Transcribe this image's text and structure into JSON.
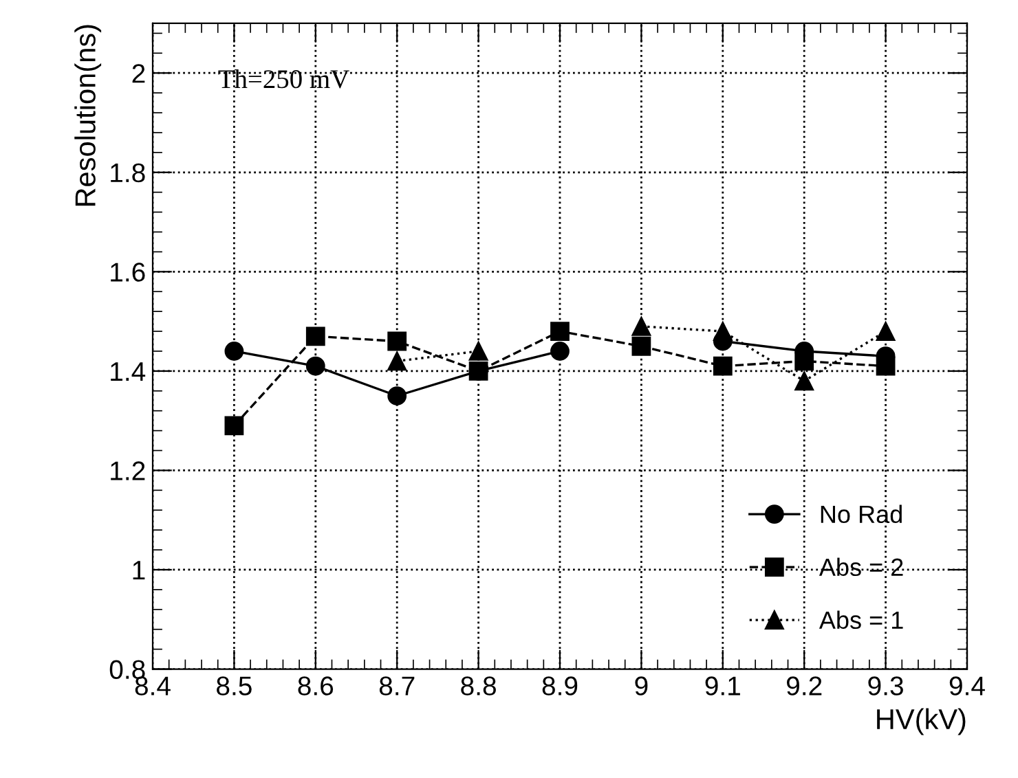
{
  "chart_data": {
    "type": "line",
    "xlabel": "HV(kV)",
    "ylabel": "Resolution(ns)",
    "x": [
      8.5,
      8.6,
      8.7,
      8.8,
      8.9,
      9.0,
      9.1,
      9.2,
      9.3
    ],
    "series": [
      {
        "name": "No Rad",
        "color": "#000000",
        "marker": "circle",
        "line_style": "solid",
        "values": [
          1.44,
          1.41,
          1.35,
          1.4,
          1.44,
          null,
          1.46,
          1.44,
          1.43
        ]
      },
      {
        "name": "Abs = 2",
        "color": "#000000",
        "marker": "square",
        "line_style": "dashed",
        "values": [
          1.29,
          1.47,
          1.46,
          1.4,
          1.48,
          1.45,
          1.41,
          1.42,
          1.41
        ]
      },
      {
        "name": "Abs = 1",
        "color": "#000000",
        "marker": "triangle",
        "line_style": "dotted",
        "values": [
          null,
          null,
          1.42,
          1.44,
          null,
          1.49,
          1.48,
          1.38,
          1.48
        ]
      }
    ],
    "annotations": [
      {
        "text": "Th=250 mV"
      }
    ],
    "xlim": [
      8.4,
      9.4
    ],
    "xticks": [
      8.4,
      8.5,
      8.6,
      8.7,
      8.8,
      8.9,
      9,
      9.1,
      9.2,
      9.3,
      9.4
    ],
    "ylim": [
      0.8,
      2.1
    ],
    "yticks": [
      0.8,
      1,
      1.2,
      1.4,
      1.6,
      1.8,
      2
    ],
    "grid": true,
    "legend": "bottom right"
  }
}
